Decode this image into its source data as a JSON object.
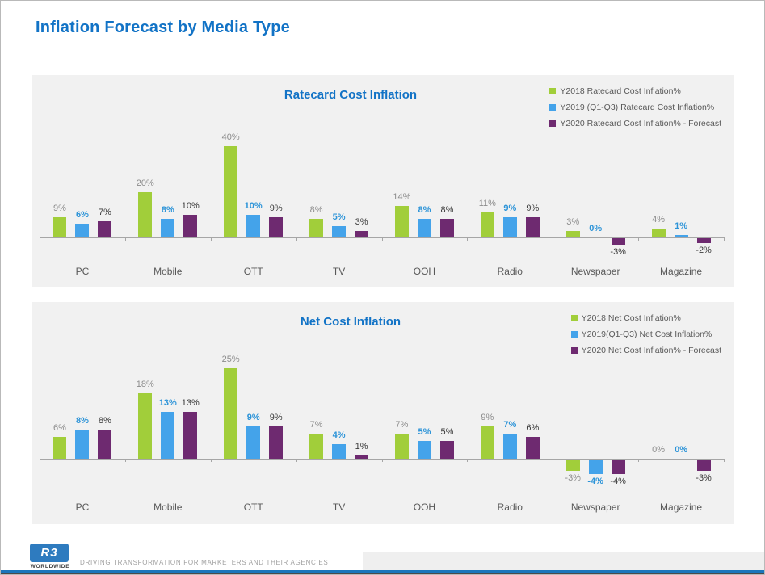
{
  "page": {
    "title": "Inflation Forecast by Media Type",
    "footer": {
      "logo_text": "R3",
      "logo_sub": "WORLDWIDE",
      "tagline": "DRIVING TRANSFORMATION FOR MARKETERS AND THEIR AGENCIES"
    }
  },
  "colors": {
    "title_blue": "#1273C6",
    "green": "#A1CE3A",
    "blue": "#44A3EA",
    "purple": "#6E2A70",
    "label_gray": "#8C8C8C",
    "label_blue": "#2D94D8",
    "label_dark": "#3A3A3A",
    "panel_bg": "#F1F1F1",
    "axis_gray": "#A6A6A6",
    "category_text": "#595959",
    "footer_bar_blue": "#1B75BB"
  },
  "chart_data": [
    {
      "type": "bar",
      "title": "Ratecard Cost Inflation",
      "categories": [
        "PC",
        "Mobile",
        "OTT",
        "TV",
        "OOH",
        "Radio",
        "Newspaper",
        "Magazine"
      ],
      "series": [
        {
          "name": "Y2018 Ratecard Cost Inflation%",
          "color_key": "green",
          "label_color_key": "label_gray",
          "values": [
            9,
            20,
            40,
            8,
            14,
            11,
            3,
            4
          ]
        },
        {
          "name": "Y2019 (Q1-Q3) Ratecard Cost Inflation%",
          "color_key": "blue",
          "label_color_key": "label_blue",
          "values": [
            6,
            8,
            10,
            5,
            8,
            9,
            0,
            1
          ]
        },
        {
          "name": "Y2020 Ratecard Cost Inflation% - Forecast",
          "color_key": "purple",
          "label_color_key": "label_dark",
          "values": [
            7,
            10,
            9,
            3,
            8,
            9,
            -3,
            -2
          ]
        }
      ],
      "unit": "%",
      "ylim": [
        -5,
        45
      ],
      "grid": false,
      "legend_position": "top-right"
    },
    {
      "type": "bar",
      "title": "Net Cost Inflation",
      "categories": [
        "PC",
        "Mobile",
        "OTT",
        "TV",
        "OOH",
        "Radio",
        "Newspaper",
        "Magazine"
      ],
      "series": [
        {
          "name": "Y2018 Net Cost Inflation%",
          "color_key": "green",
          "label_color_key": "label_gray",
          "values": [
            6,
            18,
            25,
            7,
            7,
            9,
            -3,
            0
          ]
        },
        {
          "name": "Y2019(Q1-Q3) Net Cost Inflation%",
          "color_key": "blue",
          "label_color_key": "label_blue",
          "values": [
            8,
            13,
            9,
            4,
            5,
            7,
            -4,
            0
          ]
        },
        {
          "name": "Y2020 Net Cost Inflation% - Forecast",
          "color_key": "purple",
          "label_color_key": "label_dark",
          "values": [
            8,
            13,
            9,
            1,
            5,
            6,
            -4,
            -3
          ]
        }
      ],
      "unit": "%",
      "ylim": [
        -6,
        27
      ],
      "grid": false,
      "legend_position": "top-right"
    }
  ]
}
